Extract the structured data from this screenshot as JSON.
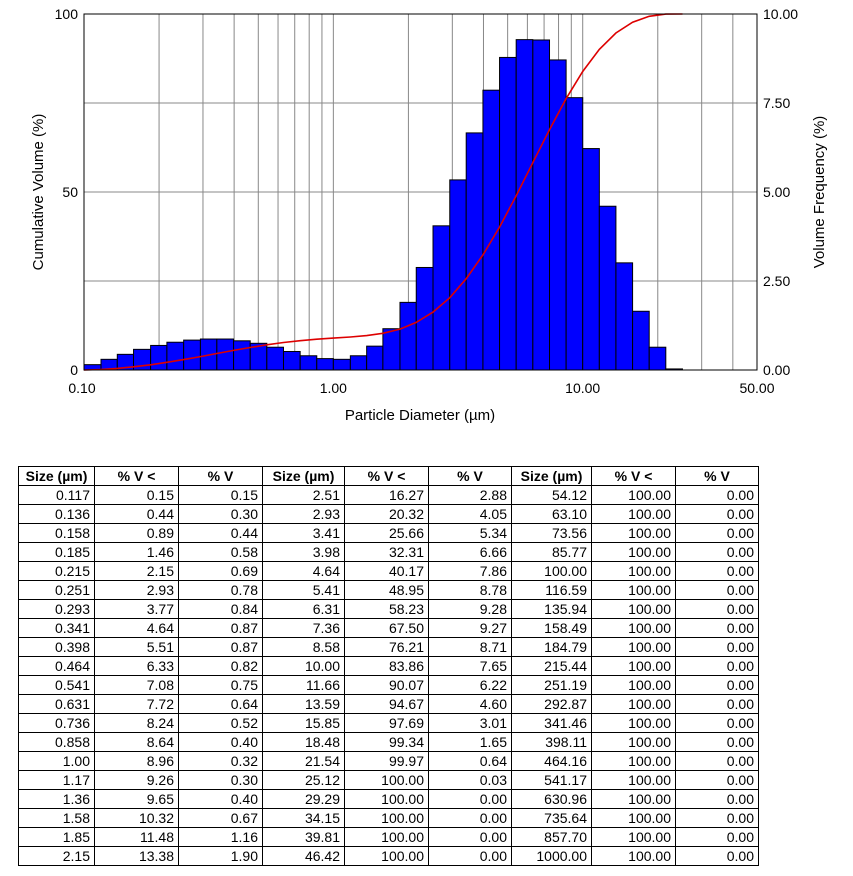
{
  "chart_data": {
    "type": "bar",
    "x_scale": "log",
    "xlim": [
      0.1,
      50.0
    ],
    "x_ticks": [
      "0.10",
      "1.00",
      "10.00",
      "50.00"
    ],
    "xlabel": "Particle Diameter (µm)",
    "ylabel_left": "Cumulative Volume (%)",
    "ylabel_right": "Volume Frequency (%)",
    "ylim_left": [
      0,
      100
    ],
    "ylim_right": [
      0,
      10
    ],
    "left_ticks": [
      "0",
      "50",
      "100"
    ],
    "right_ticks": [
      "0.00",
      "2.50",
      "5.00",
      "7.50",
      "10.00"
    ],
    "grid": true,
    "bar_color": "#0000ff",
    "line_color": "#dd0000",
    "bin_edges": [
      0.1,
      0.117,
      0.136,
      0.158,
      0.185,
      0.215,
      0.251,
      0.293,
      0.341,
      0.398,
      0.464,
      0.541,
      0.631,
      0.736,
      0.858,
      1.0,
      1.17,
      1.36,
      1.58,
      1.85,
      2.15,
      2.51,
      2.93,
      3.41,
      3.98,
      4.64,
      5.41,
      6.31,
      7.36,
      8.58,
      10.0,
      11.66,
      13.59,
      15.85,
      18.48,
      21.54,
      25.12
    ],
    "series": [
      {
        "name": "Volume Frequency",
        "type": "bar",
        "axis": "right",
        "values": [
          0.15,
          0.3,
          0.44,
          0.58,
          0.69,
          0.78,
          0.84,
          0.87,
          0.87,
          0.82,
          0.75,
          0.64,
          0.52,
          0.4,
          0.32,
          0.3,
          0.4,
          0.67,
          1.16,
          1.9,
          2.88,
          4.05,
          5.34,
          6.66,
          7.86,
          8.78,
          9.28,
          9.27,
          8.71,
          7.65,
          6.22,
          4.6,
          3.01,
          1.65,
          0.64,
          0.03
        ]
      },
      {
        "name": "Cumulative Volume",
        "type": "line",
        "axis": "left",
        "x": [
          0.117,
          0.136,
          0.158,
          0.185,
          0.215,
          0.251,
          0.293,
          0.341,
          0.398,
          0.464,
          0.541,
          0.631,
          0.736,
          0.858,
          1.0,
          1.17,
          1.36,
          1.58,
          1.85,
          2.15,
          2.51,
          2.93,
          3.41,
          3.98,
          4.64,
          5.41,
          6.31,
          7.36,
          8.58,
          10.0,
          11.66,
          13.59,
          15.85,
          18.48,
          21.54,
          25.12
        ],
        "values": [
          0.15,
          0.44,
          0.89,
          1.46,
          2.15,
          2.93,
          3.77,
          4.64,
          5.51,
          6.33,
          7.08,
          7.72,
          8.24,
          8.64,
          8.96,
          9.26,
          9.65,
          10.32,
          11.48,
          13.38,
          16.27,
          20.32,
          25.66,
          32.31,
          40.17,
          48.95,
          58.23,
          67.5,
          76.21,
          83.86,
          90.07,
          94.67,
          97.69,
          99.34,
          99.97,
          100.0
        ]
      }
    ]
  },
  "table": {
    "headers": [
      "Size (µm)",
      "% V <",
      "% V",
      "Size (µm)",
      "% V <",
      "% V",
      "Size (µm)",
      "% V <",
      "% V"
    ],
    "rows": [
      [
        "0.117",
        "0.15",
        "0.15",
        "2.51",
        "16.27",
        "2.88",
        "54.12",
        "100.00",
        "0.00"
      ],
      [
        "0.136",
        "0.44",
        "0.30",
        "2.93",
        "20.32",
        "4.05",
        "63.10",
        "100.00",
        "0.00"
      ],
      [
        "0.158",
        "0.89",
        "0.44",
        "3.41",
        "25.66",
        "5.34",
        "73.56",
        "100.00",
        "0.00"
      ],
      [
        "0.185",
        "1.46",
        "0.58",
        "3.98",
        "32.31",
        "6.66",
        "85.77",
        "100.00",
        "0.00"
      ],
      [
        "0.215",
        "2.15",
        "0.69",
        "4.64",
        "40.17",
        "7.86",
        "100.00",
        "100.00",
        "0.00"
      ],
      [
        "0.251",
        "2.93",
        "0.78",
        "5.41",
        "48.95",
        "8.78",
        "116.59",
        "100.00",
        "0.00"
      ],
      [
        "0.293",
        "3.77",
        "0.84",
        "6.31",
        "58.23",
        "9.28",
        "135.94",
        "100.00",
        "0.00"
      ],
      [
        "0.341",
        "4.64",
        "0.87",
        "7.36",
        "67.50",
        "9.27",
        "158.49",
        "100.00",
        "0.00"
      ],
      [
        "0.398",
        "5.51",
        "0.87",
        "8.58",
        "76.21",
        "8.71",
        "184.79",
        "100.00",
        "0.00"
      ],
      [
        "0.464",
        "6.33",
        "0.82",
        "10.00",
        "83.86",
        "7.65",
        "215.44",
        "100.00",
        "0.00"
      ],
      [
        "0.541",
        "7.08",
        "0.75",
        "11.66",
        "90.07",
        "6.22",
        "251.19",
        "100.00",
        "0.00"
      ],
      [
        "0.631",
        "7.72",
        "0.64",
        "13.59",
        "94.67",
        "4.60",
        "292.87",
        "100.00",
        "0.00"
      ],
      [
        "0.736",
        "8.24",
        "0.52",
        "15.85",
        "97.69",
        "3.01",
        "341.46",
        "100.00",
        "0.00"
      ],
      [
        "0.858",
        "8.64",
        "0.40",
        "18.48",
        "99.34",
        "1.65",
        "398.11",
        "100.00",
        "0.00"
      ],
      [
        "1.00",
        "8.96",
        "0.32",
        "21.54",
        "99.97",
        "0.64",
        "464.16",
        "100.00",
        "0.00"
      ],
      [
        "1.17",
        "9.26",
        "0.30",
        "25.12",
        "100.00",
        "0.03",
        "541.17",
        "100.00",
        "0.00"
      ],
      [
        "1.36",
        "9.65",
        "0.40",
        "29.29",
        "100.00",
        "0.00",
        "630.96",
        "100.00",
        "0.00"
      ],
      [
        "1.58",
        "10.32",
        "0.67",
        "34.15",
        "100.00",
        "0.00",
        "735.64",
        "100.00",
        "0.00"
      ],
      [
        "1.85",
        "11.48",
        "1.16",
        "39.81",
        "100.00",
        "0.00",
        "857.70",
        "100.00",
        "0.00"
      ],
      [
        "2.15",
        "13.38",
        "1.90",
        "46.42",
        "100.00",
        "0.00",
        "1000.00",
        "100.00",
        "0.00"
      ]
    ]
  }
}
